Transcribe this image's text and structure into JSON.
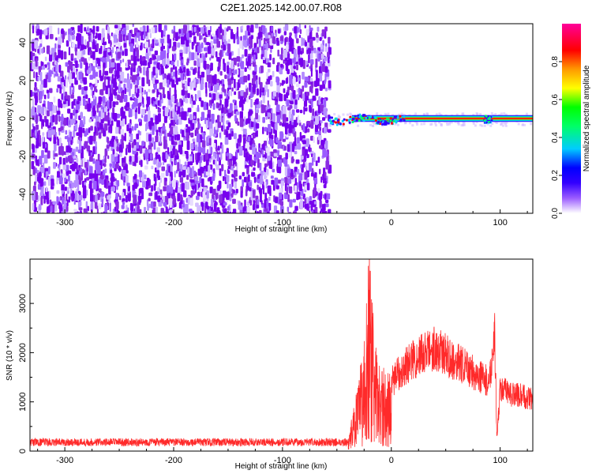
{
  "title": "C2E1.2025.142.00.07.R08",
  "chart_data": [
    {
      "type": "heatmap",
      "name": "spectrogram",
      "xlabel": "Height of straight line (km)",
      "ylabel": "Frequency (Hz)",
      "xlim": [
        -332,
        130
      ],
      "ylim": [
        -50,
        50
      ],
      "x_ticks": [
        -300,
        -200,
        -100,
        0,
        100
      ],
      "y_ticks": [
        -40,
        -20,
        0,
        20,
        40
      ],
      "signal_cutoff_x": -58,
      "carrier_freq": 0,
      "colorbar": {
        "label": "Normalized spectral amplitude",
        "range": [
          0,
          1
        ],
        "ticks": [
          0.0,
          0.2,
          0.4,
          0.6,
          0.8
        ],
        "tick_labels": [
          "0.0",
          "0.2",
          "0.4",
          "0.6",
          "0.8"
        ],
        "colors": [
          "#ffffff",
          "#9b5cff",
          "#3300ff",
          "#0000ff",
          "#00ccff",
          "#00ff66",
          "#00ff00",
          "#ffff00",
          "#ff9900",
          "#ff0000",
          "#ff0099"
        ]
      },
      "grid": false
    },
    {
      "type": "line",
      "name": "snr",
      "xlabel": "Height of straight line (km)",
      "ylabel": "SNR (10 * v/v)",
      "xlim": [
        -332,
        130
      ],
      "ylim": [
        0,
        3900
      ],
      "x_ticks": [
        -300,
        -200,
        -100,
        0,
        100
      ],
      "y_ticks": [
        0,
        1000,
        2000,
        3000
      ],
      "color": "#ff2a2a",
      "noise_floor": 180,
      "envelope": {
        "x": [
          -332,
          -300,
          -200,
          -100,
          -60,
          -40,
          -35,
          -30,
          -25,
          -20,
          -18,
          -15,
          -10,
          -5,
          0,
          10,
          20,
          30,
          40,
          50,
          60,
          70,
          80,
          90,
          95,
          97,
          100,
          110,
          120,
          130
        ],
        "y": [
          180,
          200,
          180,
          170,
          180,
          200,
          800,
          1300,
          2200,
          3900,
          3000,
          2000,
          1600,
          1500,
          1500,
          1800,
          2000,
          2150,
          2250,
          2100,
          1950,
          1800,
          1650,
          1500,
          2600,
          300,
          1350,
          1250,
          1200,
          1150
        ]
      },
      "grid": false
    }
  ]
}
